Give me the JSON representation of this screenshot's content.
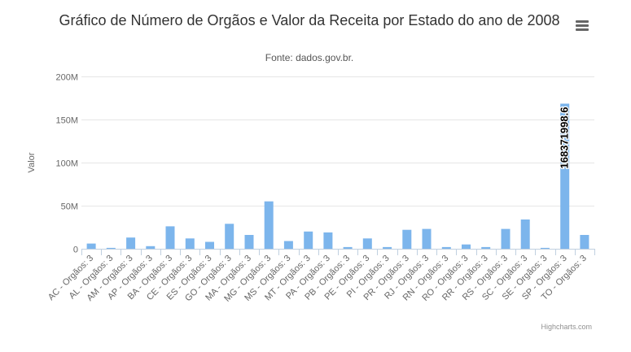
{
  "chart": {
    "title": "Gráfico de Número de Orgãos e Valor da Receita por Estado do ano de 2008",
    "subtitle": "Fonte: dados.gov.br.",
    "credits": "Highcharts.com",
    "menu_icon": "hamburger-menu-icon"
  },
  "chart_data": {
    "type": "bar",
    "title": "Gráfico de Número de Orgãos e Valor da Receita por Estado do ano de 2008",
    "subtitle": "Fonte: dados.gov.br.",
    "xlabel": "",
    "ylabel": "Valor",
    "ylim": [
      0,
      200000000
    ],
    "yticks": [
      0,
      50000000,
      100000000,
      150000000,
      200000000
    ],
    "ytick_labels": [
      "0",
      "50M",
      "100M",
      "150M",
      "200M"
    ],
    "grid": true,
    "bar_color": "#7cb5ec",
    "categories": [
      "AC - Orgãos: 3",
      "AL - Orgãos: 3",
      "AM - Orgãos: 3",
      "AP - Orgãos: 3",
      "BA - Orgãos: 3",
      "CE - Orgãos: 3",
      "ES - Orgãos: 3",
      "GO - Orgãos: 3",
      "MA - Orgãos: 3",
      "MG - Orgãos: 3",
      "MS - Orgãos: 3",
      "MT - Orgãos: 3",
      "PA - Orgãos: 3",
      "PB - Orgãos: 3",
      "PE - Orgãos: 3",
      "PI - Orgãos: 3",
      "PR - Orgãos: 3",
      "RJ - Orgãos: 3",
      "RN - Orgãos: 3",
      "RO - Orgãos: 3",
      "RR - Orgãos: 3",
      "RS - Orgãos: 3",
      "SC - Orgãos: 3",
      "SE - Orgãos: 3",
      "SP - Orgãos: 3",
      "TO - Orgãos: 3"
    ],
    "values": [
      6000000,
      1000000,
      13000000,
      3000000,
      26000000,
      12000000,
      8000000,
      29000000,
      16000000,
      55000000,
      9000000,
      20000000,
      19000000,
      2000000,
      12000000,
      2000000,
      22000000,
      23000000,
      2000000,
      5000000,
      2000000,
      23000000,
      34000000,
      1000000,
      168371998.6,
      16000000
    ],
    "data_labels": [
      {
        "index": 24,
        "text": "168371998.6"
      }
    ]
  }
}
